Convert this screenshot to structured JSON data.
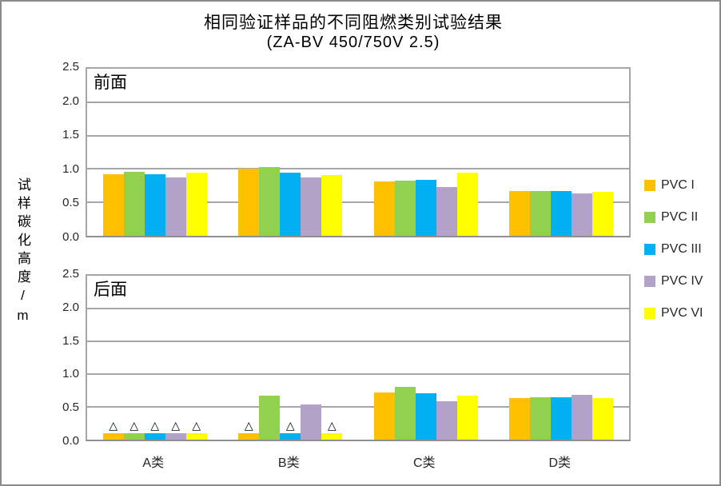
{
  "title": {
    "line1": "相同验证样品的不同阻燃类别试验结果",
    "line2": "(ZA-BV 450/750V 2.5)"
  },
  "y_axis_title": "试样碳化高度/m",
  "legend": {
    "items": [
      {
        "label": "PVC I",
        "color": "#FFC000"
      },
      {
        "label": "PVC II",
        "color": "#92D050"
      },
      {
        "label": "PVC III",
        "color": "#00B0F0"
      },
      {
        "label": "PVC IV",
        "color": "#B3A2C7"
      },
      {
        "label": "PVC VI",
        "color": "#FFFF00"
      }
    ]
  },
  "chart_data": {
    "type": "bar",
    "title": "相同验证样品的不同阻燃类别试验结果 (ZA-BV 450/750V 2.5)",
    "ylabel": "试样碳化高度/m",
    "ylim": [
      0,
      2.5
    ],
    "ytick_step": 0.5,
    "grid": true,
    "legend_position": "right",
    "marker_glyph": "△",
    "categories": [
      "A类",
      "B类",
      "C类",
      "D类"
    ],
    "panels": [
      {
        "label": "前面",
        "series": [
          {
            "name": "PVC I",
            "color": "#FFC000",
            "values": [
              0.92,
              1.0,
              0.81,
              0.67
            ]
          },
          {
            "name": "PVC II",
            "color": "#92D050",
            "values": [
              0.96,
              1.03,
              0.82,
              0.67
            ]
          },
          {
            "name": "PVC III",
            "color": "#00B0F0",
            "values": [
              0.92,
              0.95,
              0.84,
              0.67
            ]
          },
          {
            "name": "PVC IV",
            "color": "#B3A2C7",
            "values": [
              0.87,
              0.87,
              0.73,
              0.64
            ]
          },
          {
            "name": "PVC VI",
            "color": "#FFFF00",
            "values": [
              0.94,
              0.91,
              0.94,
              0.66
            ]
          }
        ]
      },
      {
        "label": "后面",
        "series": [
          {
            "name": "PVC I",
            "color": "#FFC000",
            "values": [
              0.1,
              0.1,
              0.72,
              0.64
            ],
            "markers": [
              true,
              true,
              false,
              false
            ]
          },
          {
            "name": "PVC II",
            "color": "#92D050",
            "values": [
              0.1,
              0.67,
              0.81,
              0.65
            ],
            "markers": [
              true,
              false,
              false,
              false
            ]
          },
          {
            "name": "PVC III",
            "color": "#00B0F0",
            "values": [
              0.1,
              0.1,
              0.71,
              0.65
            ],
            "markers": [
              true,
              true,
              false,
              false
            ]
          },
          {
            "name": "PVC IV",
            "color": "#B3A2C7",
            "values": [
              0.1,
              0.54,
              0.58,
              0.68
            ],
            "markers": [
              true,
              false,
              false,
              false
            ]
          },
          {
            "name": "PVC VI",
            "color": "#FFFF00",
            "values": [
              0.1,
              0.1,
              0.67,
              0.64
            ],
            "markers": [
              true,
              true,
              false,
              false
            ]
          }
        ]
      }
    ]
  }
}
